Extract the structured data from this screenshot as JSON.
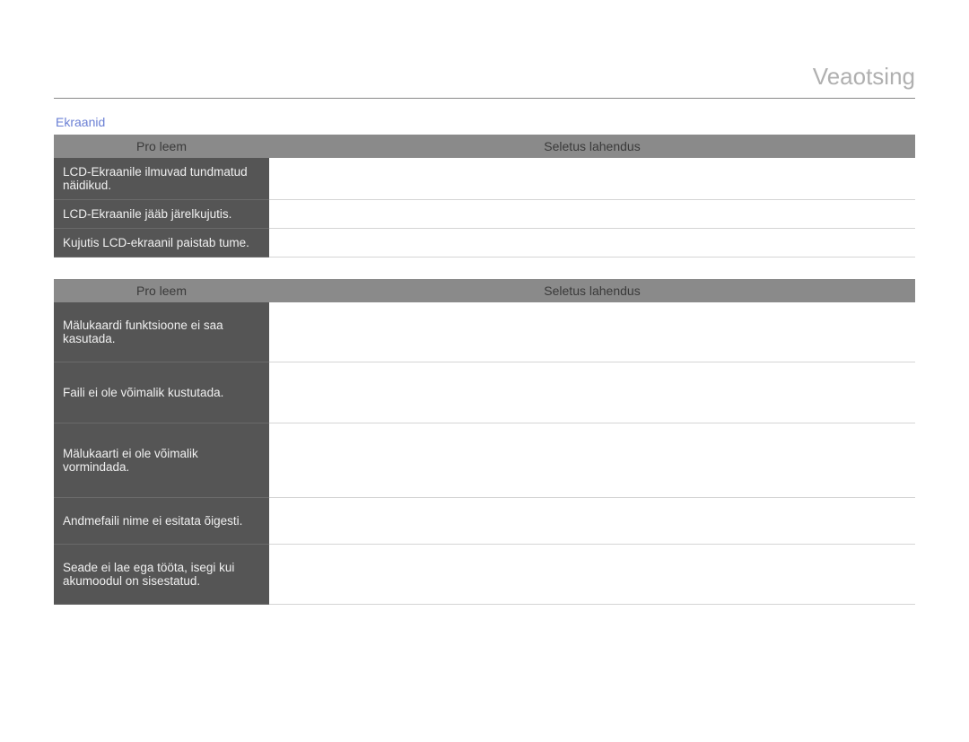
{
  "page": {
    "title": "Veaotsing",
    "pagenum": "   "
  },
  "section1": {
    "title": "Ekraanid",
    "headers": {
      "problem": "Pro  leem",
      "solution": "Seletus  lahendus"
    },
    "rows": [
      {
        "problem": "LCD-Ekraanile ilmuvad tundmatud näidikud.",
        "solution": ""
      },
      {
        "problem": "LCD-Ekraanile jääb järelkujutis.",
        "solution": ""
      },
      {
        "problem": "Kujutis LCD-ekraanil paistab tume.",
        "solution": ""
      }
    ]
  },
  "section2": {
    "headers": {
      "problem": "Pro  leem",
      "solution": "Seletus  lahendus"
    },
    "rows": [
      {
        "problem": "Mälukaardi funktsioone ei saa kasutada.",
        "solution": ""
      },
      {
        "problem": "Faili ei ole võimalik kustutada.",
        "solution": ""
      },
      {
        "problem": "Mälukaarti ei ole võimalik vormindada.",
        "solution": ""
      },
      {
        "problem": "Andmefaili nime ei esitata õigesti.",
        "solution": ""
      },
      {
        "problem": "Seade ei lae ega tööta, isegi kui akumoodul on sisestatud.",
        "solution": ""
      }
    ]
  },
  "colors": {
    "title_text": "#b0b0b0",
    "section_title": "#6a7fd4",
    "header_bg": "#8a8a8a",
    "header_text": "#3a3a3a",
    "problem_bg": "#555555",
    "problem_text": "#f0f0f0",
    "solution_text": "#8a8a8a",
    "rule": "#d5d5d5"
  }
}
